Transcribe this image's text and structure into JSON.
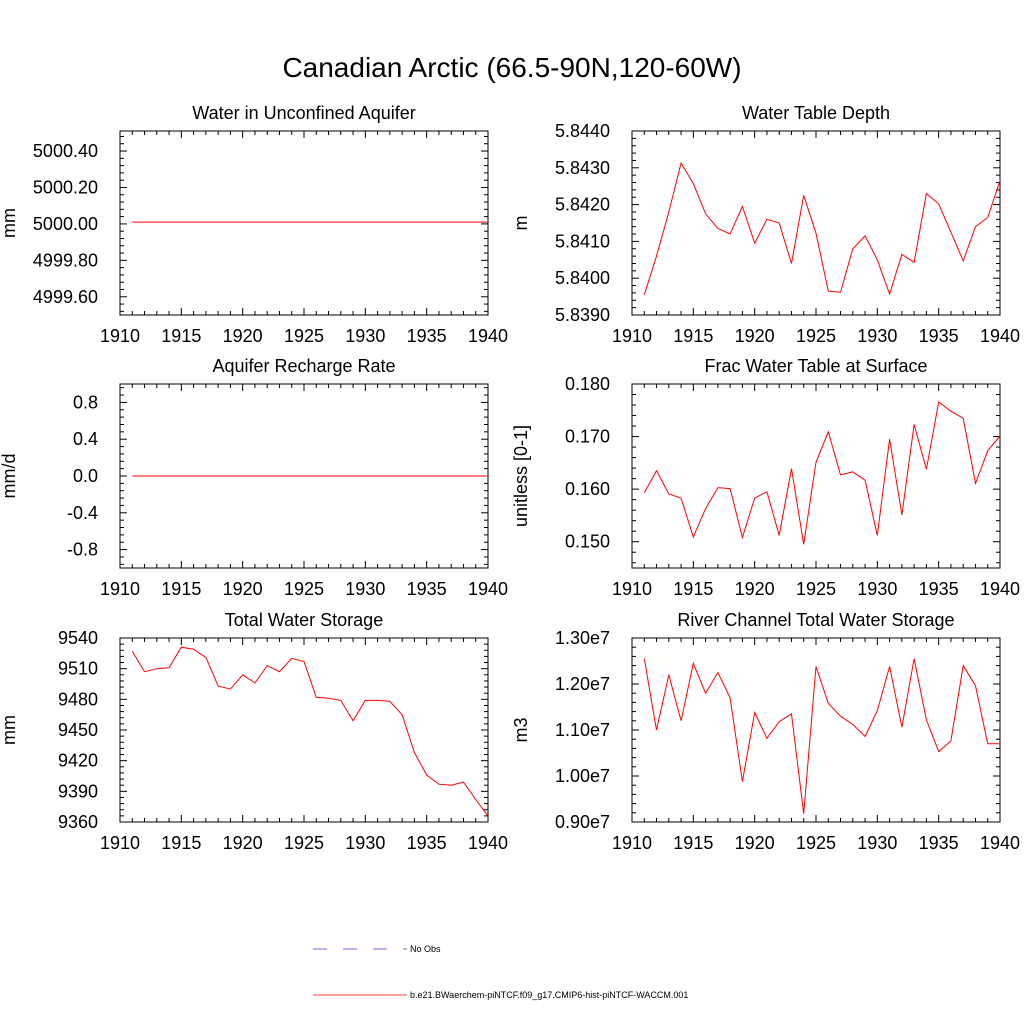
{
  "title": "Canadian Arctic (66.5-90N,120-60W)",
  "series_color": "#ff0000",
  "obs_color": "#3b3bd6",
  "legend": [
    {
      "label": "No Obs",
      "style": "dashed",
      "color": "#3b3bd6"
    },
    {
      "label": "b.e21.BWaerchem-piNTCF.f09_g17.CMIP6-hist-piNTCF-WACCM.001",
      "style": "solid",
      "color": "#ff0000"
    }
  ],
  "chart_data": [
    {
      "type": "line",
      "title": "Water in Unconfined Aquifer",
      "ylabel": "mm",
      "xlim": [
        1910,
        1940
      ],
      "ylim": [
        4999.5,
        5000.51
      ],
      "xticks": [
        1910,
        1915,
        1920,
        1925,
        1930,
        1935,
        1940
      ],
      "yticks": [
        4999.6,
        4999.8,
        5000.0,
        5000.2,
        5000.4
      ],
      "ytick_labels": [
        "4999.60",
        "4999.80",
        "5000.00",
        "5000.20",
        "5000.40"
      ],
      "x": [
        1911,
        1940
      ],
      "values": [
        5000.01,
        5000.01
      ]
    },
    {
      "type": "line",
      "title": "Water Table Depth",
      "ylabel": "m",
      "xlim": [
        1910,
        1940
      ],
      "ylim": [
        5.839,
        5.844
      ],
      "xticks": [
        1910,
        1915,
        1920,
        1925,
        1930,
        1935,
        1940
      ],
      "yticks": [
        5.839,
        5.84,
        5.841,
        5.842,
        5.843,
        5.844
      ],
      "ytick_labels": [
        "5.8390",
        "5.8400",
        "5.8410",
        "5.8420",
        "5.8430",
        "5.8440"
      ],
      "x": [
        1911,
        1912,
        1913,
        1914,
        1915,
        1916,
        1917,
        1918,
        1919,
        1920,
        1921,
        1922,
        1923,
        1924,
        1925,
        1926,
        1927,
        1928,
        1929,
        1930,
        1931,
        1932,
        1933,
        1934,
        1935,
        1936,
        1937,
        1938,
        1939,
        1940
      ],
      "values": [
        5.83955,
        5.8406,
        5.8418,
        5.84313,
        5.84257,
        5.84175,
        5.84135,
        5.8412,
        5.84195,
        5.84095,
        5.8416,
        5.8415,
        5.8404,
        5.84225,
        5.84122,
        5.83965,
        5.83962,
        5.8408,
        5.84115,
        5.8405,
        5.83957,
        5.84065,
        5.84043,
        5.8423,
        5.84202,
        5.84125,
        5.84047,
        5.8414,
        5.84165,
        5.84265
      ]
    },
    {
      "type": "line",
      "title": "Aquifer Recharge Rate",
      "ylabel": "mm/d",
      "xlim": [
        1910,
        1940
      ],
      "ylim": [
        -1.0,
        1.0
      ],
      "xticks": [
        1910,
        1915,
        1920,
        1925,
        1930,
        1935,
        1940
      ],
      "yticks": [
        -0.8,
        -0.4,
        0.0,
        0.4,
        0.8
      ],
      "ytick_labels": [
        "-0.8",
        "-0.4",
        "0.0",
        "0.4",
        "0.8"
      ],
      "x": [
        1911,
        1940
      ],
      "values": [
        0.0,
        0.0
      ]
    },
    {
      "type": "line",
      "title": "Frac Water Table at Surface",
      "ylabel": "unitless [0-1]",
      "xlim": [
        1910,
        1940
      ],
      "ylim": [
        0.145,
        0.18
      ],
      "xticks": [
        1910,
        1915,
        1920,
        1925,
        1930,
        1935,
        1940
      ],
      "yticks": [
        0.15,
        0.16,
        0.17,
        0.18
      ],
      "ytick_labels": [
        "0.150",
        "0.160",
        "0.170",
        "0.180"
      ],
      "x": [
        1911,
        1912,
        1913,
        1914,
        1915,
        1916,
        1917,
        1918,
        1919,
        1920,
        1921,
        1922,
        1923,
        1924,
        1925,
        1926,
        1927,
        1928,
        1929,
        1930,
        1931,
        1932,
        1933,
        1934,
        1935,
        1936,
        1937,
        1938,
        1939,
        1940
      ],
      "values": [
        0.1593,
        0.1635,
        0.1591,
        0.1583,
        0.1509,
        0.1563,
        0.1603,
        0.1601,
        0.1508,
        0.1583,
        0.1595,
        0.1512,
        0.1639,
        0.1495,
        0.1651,
        0.1709,
        0.1627,
        0.1633,
        0.1617,
        0.1512,
        0.1695,
        0.1551,
        0.1723,
        0.1638,
        0.1766,
        0.1748,
        0.1735,
        0.1611,
        0.1673,
        0.1701
      ]
    },
    {
      "type": "line",
      "title": "Total Water Storage",
      "ylabel": "mm",
      "xlim": [
        1910,
        1940
      ],
      "ylim": [
        9360,
        9540
      ],
      "xticks": [
        1910,
        1915,
        1920,
        1925,
        1930,
        1935,
        1940
      ],
      "yticks": [
        9360,
        9390,
        9420,
        9450,
        9480,
        9510,
        9540
      ],
      "ytick_labels": [
        "9360",
        "9390",
        "9420",
        "9450",
        "9480",
        "9510",
        "9540"
      ],
      "x": [
        1911,
        1912,
        1913,
        1914,
        1915,
        1916,
        1917,
        1918,
        1919,
        1920,
        1921,
        1922,
        1923,
        1924,
        1925,
        1926,
        1927,
        1928,
        1929,
        1930,
        1931,
        1932,
        1933,
        1934,
        1935,
        1936,
        1937,
        1938,
        1939,
        1940
      ],
      "values": [
        9527,
        9507,
        9510,
        9511,
        9531,
        9529,
        9521,
        9493,
        9490,
        9504,
        9496,
        9513,
        9507,
        9520,
        9517,
        9482,
        9481,
        9479,
        9459,
        9479,
        9479,
        9478,
        9465,
        9428,
        9406,
        9397,
        9396,
        9399,
        9382,
        9366
      ]
    },
    {
      "type": "line",
      "title": "River Channel Total Water Storage",
      "ylabel": "m3",
      "xlim": [
        1910,
        1940
      ],
      "ylim": [
        9000000,
        13000000
      ],
      "xticks": [
        1910,
        1915,
        1920,
        1925,
        1930,
        1935,
        1940
      ],
      "yticks": [
        9000000,
        10000000,
        11000000,
        12000000,
        13000000
      ],
      "ytick_labels": [
        "0.90e7",
        "1.00e7",
        "1.10e7",
        "1.20e7",
        "1.30e7"
      ],
      "x": [
        1911,
        1912,
        1913,
        1914,
        1915,
        1916,
        1917,
        1918,
        1919,
        1920,
        1921,
        1922,
        1923,
        1924,
        1925,
        1926,
        1927,
        1928,
        1929,
        1930,
        1931,
        1932,
        1933,
        1934,
        1935,
        1936,
        1937,
        1938,
        1939,
        1940
      ],
      "values": [
        12550000,
        11000000,
        12200000,
        11200000,
        12450000,
        11800000,
        12250000,
        11700000,
        9880000,
        11380000,
        10820000,
        11180000,
        11350000,
        9180000,
        12380000,
        11580000,
        11300000,
        11120000,
        10860000,
        11420000,
        12380000,
        11060000,
        12550000,
        11220000,
        10530000,
        10760000,
        12400000,
        11960000,
        10700000,
        10700000
      ]
    }
  ]
}
